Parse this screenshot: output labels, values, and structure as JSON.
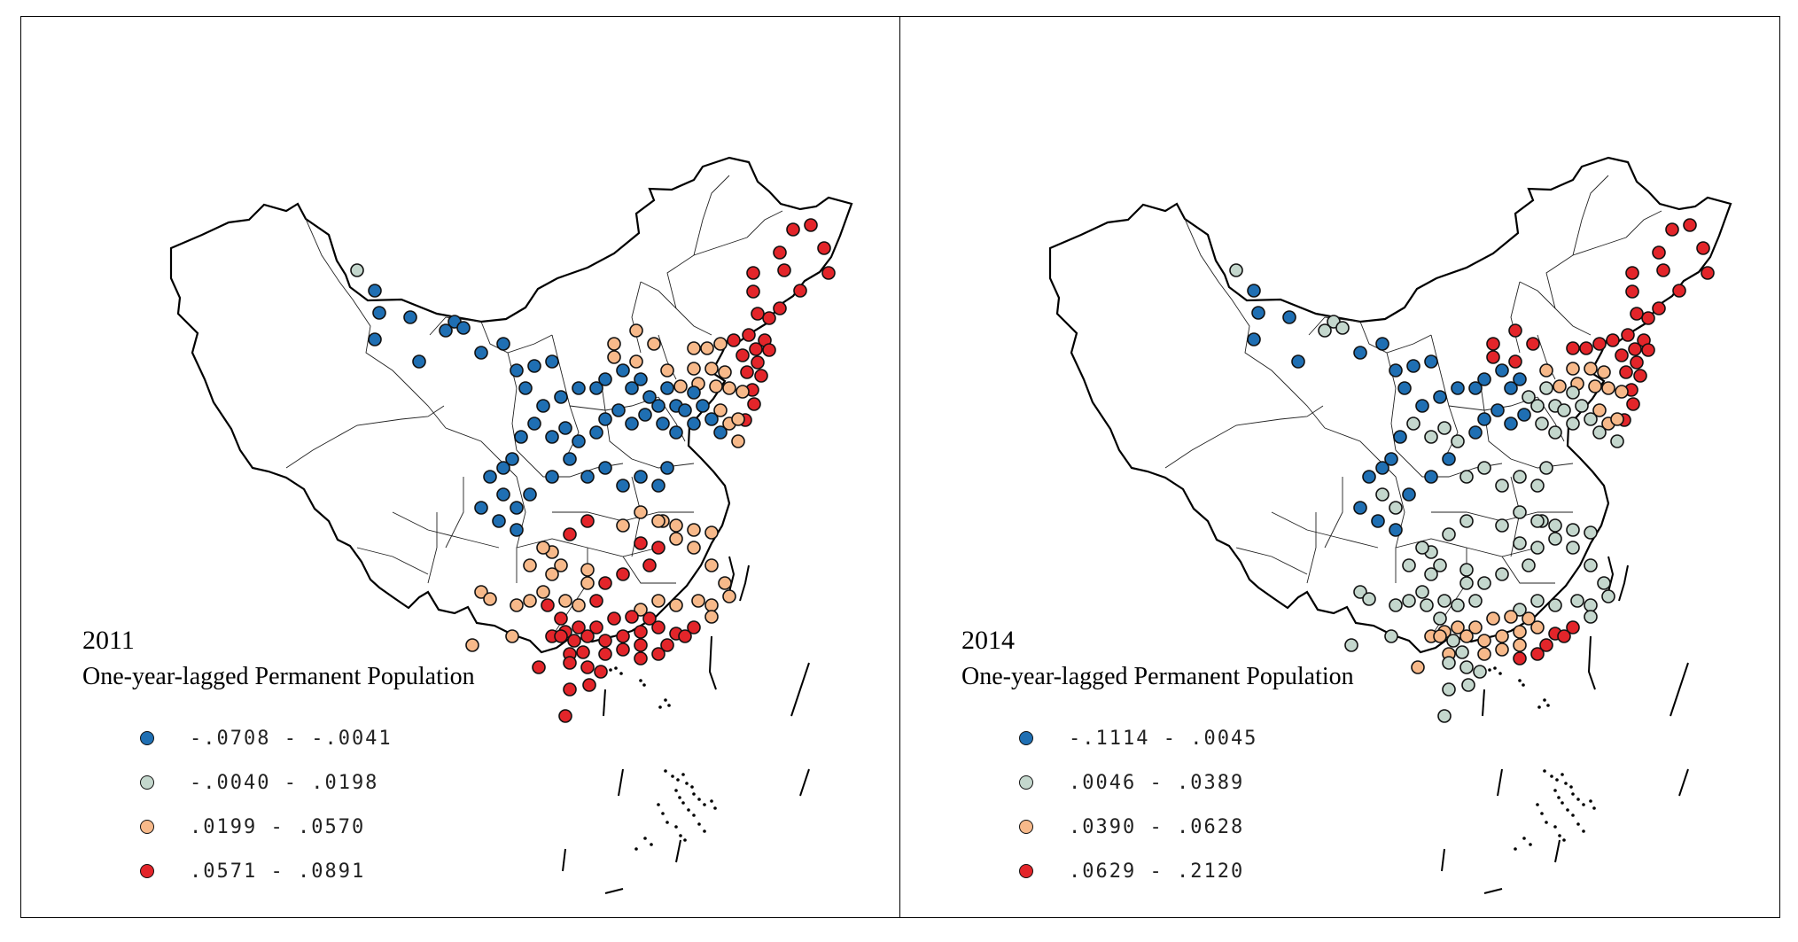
{
  "maps": [
    {
      "year": "2011",
      "legend_title": "One-year-lagged Permanent Population",
      "legend": [
        {
          "label": "-.0708 - -.0041",
          "color": "#1f6fb3"
        },
        {
          "label": "-.0040 - .0198",
          "color": "#c4d7cd"
        },
        {
          "label": ".0199 - .0570",
          "color": "#f7b98a"
        },
        {
          "label": ".0571 - .0891",
          "color": "#e3252a"
        }
      ]
    },
    {
      "year": "2014",
      "legend_title": "One-year-lagged Permanent Population",
      "legend": [
        {
          "label": "-.1114 - .0045",
          "color": "#1f6fb3"
        },
        {
          "label": ".0046 - .0389",
          "color": "#c4d7cd"
        },
        {
          "label": ".0390 - .0628",
          "color": "#f7b98a"
        },
        {
          "label": ".0629 - .2120",
          "color": "#e3252a"
        }
      ]
    }
  ]
}
